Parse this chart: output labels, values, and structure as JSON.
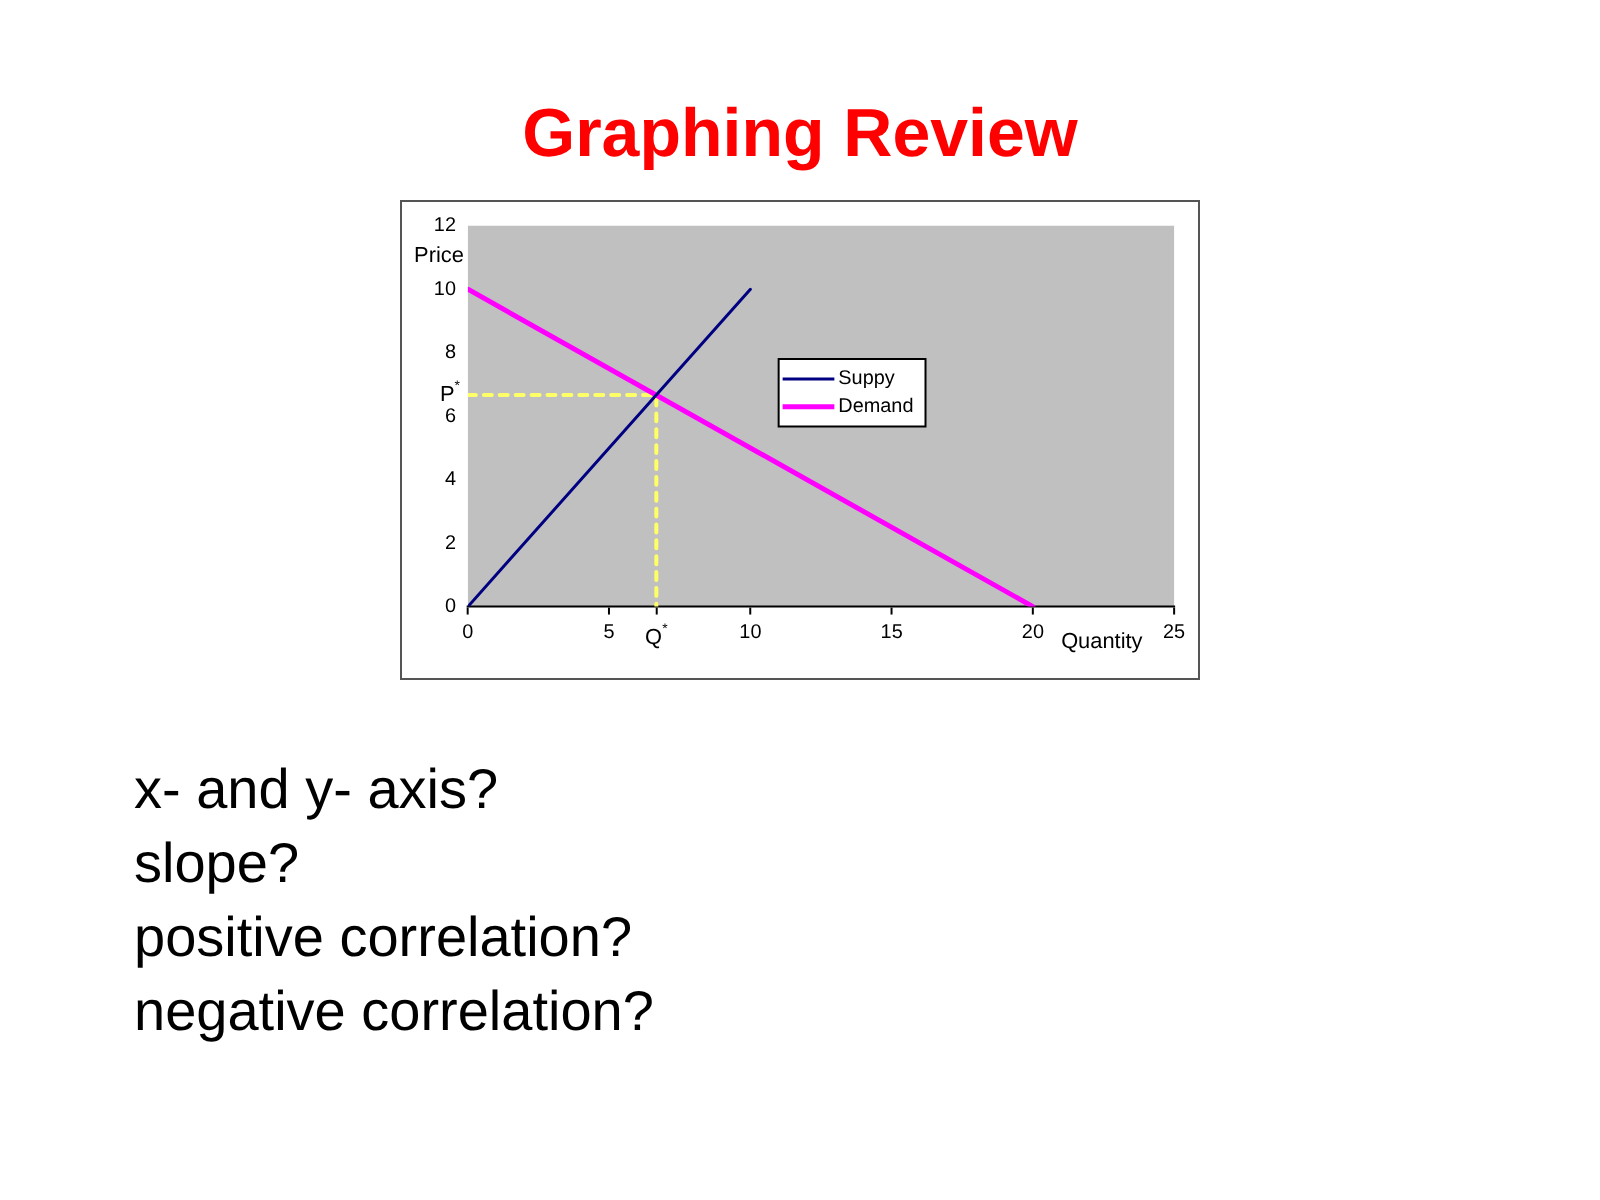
{
  "chart_data": {
    "type": "line",
    "title": "Graphing Review",
    "xlabel": "Quantity",
    "ylabel": "Price",
    "xlim": [
      0,
      25
    ],
    "xticks": [
      0,
      5,
      {
        "value": 6.67,
        "label": "Q$^{*}$"
      },
      10,
      15,
      20,
      25
    ],
    "ylim": [
      0,
      12
    ],
    "yticks": [
      0,
      2,
      4,
      6,
      {
        "value": 6.67,
        "label": "P$^{*}$"
      },
      8,
      10,
      12
    ],
    "series": [
      {
        "name": "Suppy",
        "type": "line",
        "color": "#000080",
        "line_style": "solid",
        "x": [
          0,
          10
        ],
        "values": [
          0,
          10
        ]
      },
      {
        "name": "Demand",
        "type": "line",
        "color": "#ff00ff",
        "line_style": "solid",
        "x": [
          0,
          20
        ],
        "values": [
          10,
          0
        ]
      },
      {
        "type": "line",
        "color": "#ffff66",
        "line_style": "dashed",
        "x": [
          0,
          6.67,
          6.67
        ],
        "values": [
          6.67,
          6.67,
          0
        ]
      }
    ],
    "legend": "right",
    "grid": false,
    "marker": "none",
    "annotations": [
      "x- and y- axis?",
      "slope?",
      "positive correlation?",
      "negative correlation?"
    ]
  }
}
